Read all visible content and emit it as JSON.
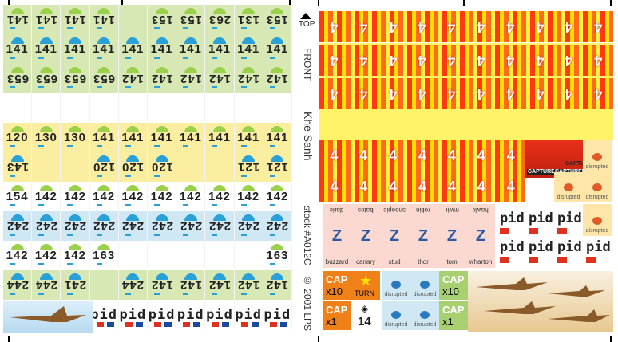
{
  "sheet": {
    "top_label": "TOP",
    "front_label": "FRONT",
    "title": "Khe Sanh",
    "stock": "stock #A012C",
    "copyright": "© 2001 LPS"
  },
  "left_rows": [
    {
      "band": "band-green",
      "rot": true,
      "items": [
        "141",
        "141",
        "141",
        "141",
        "",
        "153",
        "153",
        "263",
        "131",
        "153"
      ]
    },
    {
      "band": "band-green",
      "rot": false,
      "items": [
        "141",
        "141",
        "141",
        "141",
        "141",
        "141",
        "141",
        "141",
        "141",
        "141"
      ]
    },
    {
      "band": "band-green",
      "rot": true,
      "items": [
        "653",
        "653",
        "653",
        "653",
        "142",
        "142",
        "142",
        "142",
        "142",
        "142"
      ]
    },
    {
      "band": "band-white",
      "rot": false,
      "items": [
        "",
        "",
        "",
        "",
        "",
        "",
        "",
        "",
        "",
        ""
      ]
    },
    {
      "band": "band-yellow",
      "rot": false,
      "items": [
        "120",
        "130",
        "130",
        "141",
        "141",
        "141",
        "141",
        "141",
        "141",
        "141"
      ]
    },
    {
      "band": "band-yellow",
      "rot": true,
      "items": [
        "143",
        "",
        "",
        "120",
        "120",
        "120",
        "",
        "",
        "121",
        "121"
      ]
    },
    {
      "band": "band-white",
      "rot": false,
      "items": [
        "154",
        "142",
        "142",
        "142",
        "142",
        "142",
        "142",
        "142",
        "142",
        "142"
      ]
    },
    {
      "band": "band-blue",
      "rot": true,
      "items": [
        "242",
        "242",
        "242",
        "242",
        "242",
        "242",
        "242",
        "242",
        "242",
        "242"
      ]
    },
    {
      "band": "band-white",
      "rot": false,
      "items": [
        "142",
        "142",
        "142",
        "163",
        "",
        "",
        "",
        "",
        "",
        "163"
      ]
    },
    {
      "band": "band-green",
      "rot": true,
      "items": [
        "244",
        "244",
        "241",
        "",
        "244",
        "142",
        "142",
        "142",
        "142",
        "142"
      ]
    },
    {
      "band": "band-white",
      "rot": false,
      "items": [
        "",
        "pid",
        "pid",
        "pid",
        "pid",
        "pid",
        "pid",
        "pid",
        "pid",
        "pid"
      ]
    }
  ],
  "fire_rows": [
    {
      "digit": "4",
      "up": false
    },
    {
      "digit": "4",
      "up": false
    },
    {
      "digit": "4",
      "up": false
    },
    {
      "digit": "4",
      "up": true
    }
  ],
  "markers": {
    "captured": "CAPTURED",
    "disrupted": "disrupted",
    "turn": "TURN",
    "cap": "CAP",
    "cap_values": [
      "x10",
      "x1",
      "x10",
      "x1"
    ],
    "combo_value": "14",
    "pid": "pid",
    "nato_names_top": [
      "daric",
      "bates",
      "snoopie",
      "robin",
      "mwir",
      "hawk"
    ],
    "nato_names_bottom": [
      "buzzard",
      "canary",
      "stud",
      "thor",
      "tom",
      "wharton"
    ]
  },
  "colors": {
    "fire_red": "#ff3a12",
    "fire_yellow": "#ffe000",
    "cap_orange": "#f08018",
    "nato_pink": "#fbd8d0",
    "green_band": "#d8e8b4",
    "blue_band": "#cfe8f4",
    "yellow_band": "#fbeea0"
  }
}
